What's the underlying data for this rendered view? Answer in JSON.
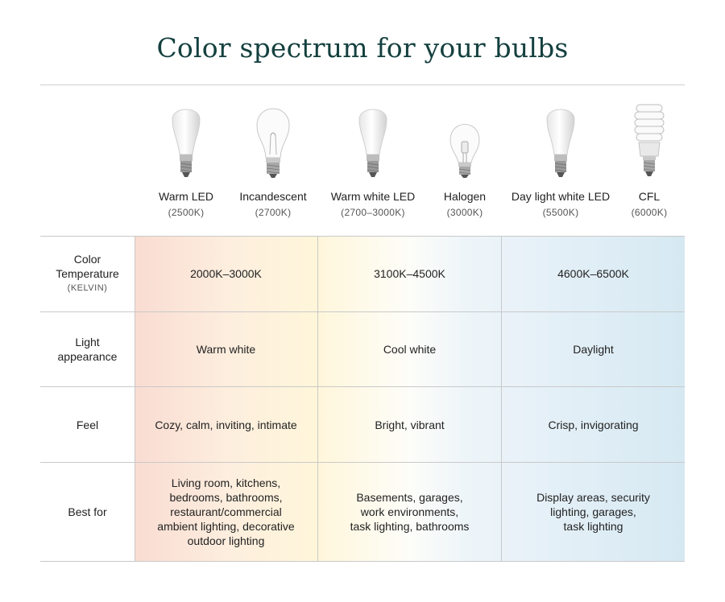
{
  "title": "Color spectrum for your bulbs",
  "bulbs": [
    {
      "name": "Warm LED",
      "kelvin": "(2500K)",
      "icon": "led-bulb-icon"
    },
    {
      "name": "Incandescent",
      "kelvin": "(2700K)",
      "icon": "incandescent-bulb-icon"
    },
    {
      "name": "Warm white LED",
      "kelvin": "(2700–3000K)",
      "icon": "led-bulb-icon"
    },
    {
      "name": "Halogen",
      "kelvin": "(3000K)",
      "icon": "halogen-bulb-icon"
    },
    {
      "name": "Day light white LED",
      "kelvin": "(5500K)",
      "icon": "led-bulb-icon"
    },
    {
      "name": "CFL",
      "kelvin": "(6000K)",
      "icon": "cfl-bulb-icon"
    }
  ],
  "rows": [
    {
      "label": "Color\nTemperature",
      "sublabel": "(KELVIN)",
      "cells": [
        "2000K–3000K",
        "3100K–4500K",
        "4600K–6500K"
      ]
    },
    {
      "label": "Light\nappearance",
      "sublabel": "",
      "cells": [
        "Warm white",
        "Cool white",
        "Daylight"
      ]
    },
    {
      "label": "Feel",
      "sublabel": "",
      "cells": [
        "Cozy, calm, inviting, intimate",
        "Bright, vibrant",
        "Crisp, invigorating"
      ]
    },
    {
      "label": "Best for",
      "sublabel": "",
      "cells": [
        "Living room, kitchens,\nbedrooms, bathrooms,\nrestaurant/commercial\nambient lighting, decorative\noutdoor lighting",
        "Basements, garages,\nwork environments,\ntask lighting, bathrooms",
        "Display areas, security\nlighting, garages,\ntask lighting"
      ]
    }
  ],
  "colors": {
    "title": "#14403f",
    "warm": "#f9dcd2",
    "neutral": "#fdfdf9",
    "cool": "#d6e9f2"
  }
}
